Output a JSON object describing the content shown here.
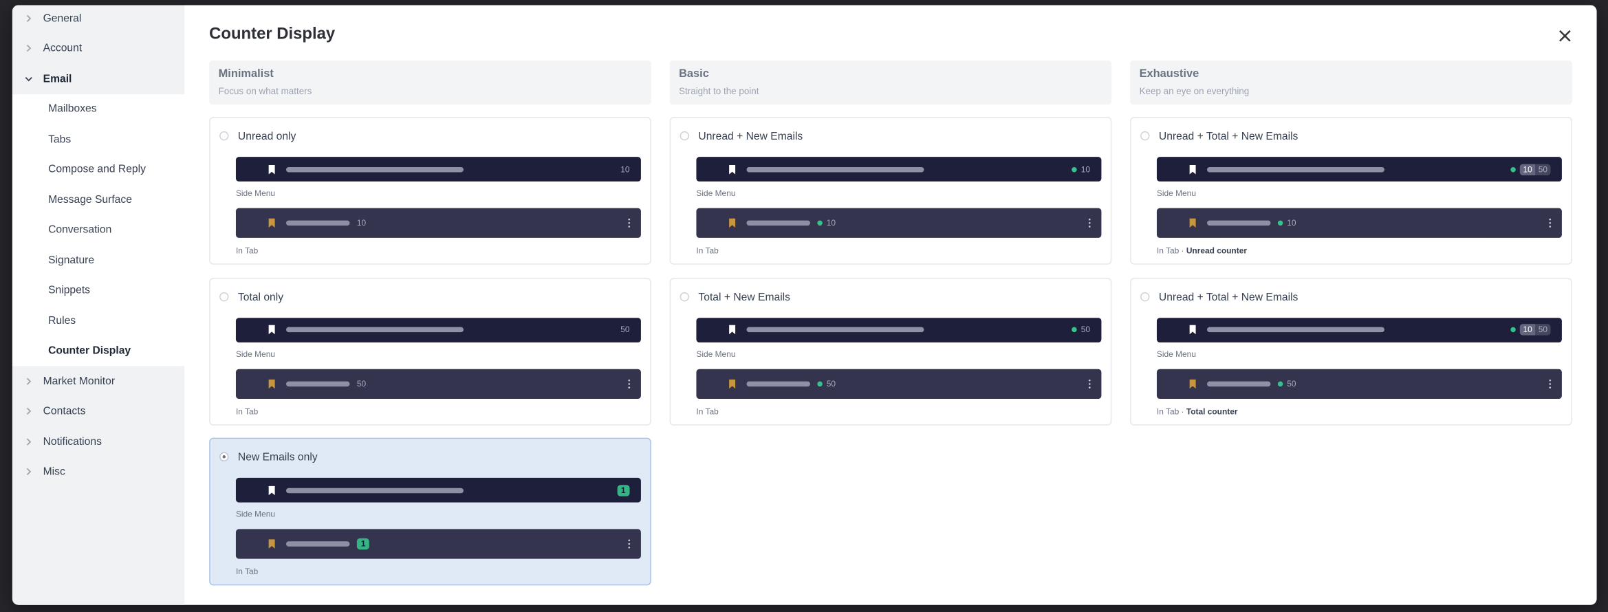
{
  "header": {
    "title": "Counter Display"
  },
  "sidebar": {
    "active_child": 8,
    "items": [
      {
        "label": "General"
      },
      {
        "label": "Account"
      },
      {
        "label": "Email",
        "children": [
          "Mailboxes",
          "Tabs",
          "Compose and Reply",
          "Message Surface",
          "Conversation",
          "Signature",
          "Snippets",
          "Rules",
          "Counter Display"
        ]
      },
      {
        "label": "Market Monitor"
      },
      {
        "label": "Contacts"
      },
      {
        "label": "Notifications"
      },
      {
        "label": "Misc"
      }
    ]
  },
  "columns": [
    {
      "title": "Minimalist",
      "subtitle": "Focus on what matters"
    },
    {
      "title": "Basic",
      "subtitle": "Straight to the point"
    },
    {
      "title": "Exhaustive",
      "subtitle": "Keep an eye on everything"
    }
  ],
  "options": [
    {
      "label": "Unread only",
      "side_menu_label": "Side Menu",
      "side_counts": [
        10
      ],
      "tab_label": "In Tab",
      "tab_counts": [
        10
      ],
      "indicator": "none"
    },
    {
      "label": "Unread + New Emails",
      "side_menu_label": "Side Menu",
      "side_counts": [
        10
      ],
      "tab_label": "In Tab",
      "tab_counts": [
        10
      ],
      "indicator": "dot"
    },
    {
      "label": "Unread + Total + New Emails",
      "side_menu_label": "Side Menu",
      "side_counts": [
        10,
        50
      ],
      "tab_label": "In Tab",
      "tab_note": "Unread counter",
      "tab_counts": [
        10
      ],
      "indicator": "dot"
    },
    {
      "label": "Total only",
      "side_menu_label": "Side Menu",
      "side_counts": [
        50
      ],
      "tab_label": "In Tab",
      "tab_counts": [
        50
      ],
      "indicator": "none"
    },
    {
      "label": "Total + New Emails",
      "side_menu_label": "Side Menu",
      "side_counts": [
        50
      ],
      "tab_label": "In Tab",
      "tab_counts": [
        50
      ],
      "indicator": "dot"
    },
    {
      "label": "Unread + Total + New Emails",
      "side_menu_label": "Side Menu",
      "side_counts": [
        10,
        50
      ],
      "tab_label": "In Tab",
      "tab_note": "Total counter",
      "tab_counts": [
        50
      ],
      "indicator": "dot"
    },
    {
      "label": "New Emails only",
      "side_menu_label": "Side Menu",
      "side_counts": [
        1
      ],
      "tab_label": "In Tab",
      "tab_counts": [
        1
      ],
      "indicator": "badge",
      "selected": true
    }
  ]
}
